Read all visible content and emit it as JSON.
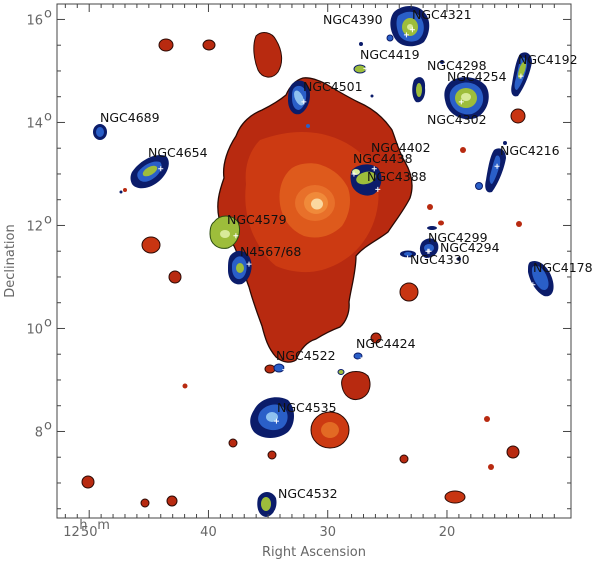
{
  "chart_data": {
    "type": "scatter",
    "xlabel": "Right Ascension",
    "ylabel": "Declination",
    "x_ticks": [
      {
        "ra": 50,
        "label": "50",
        "lead": "12",
        "h": "h",
        "m": "m"
      },
      {
        "ra": 40,
        "label": "40"
      },
      {
        "ra": 30,
        "label": "30"
      },
      {
        "ra": 20,
        "label": "20"
      }
    ],
    "y_ticks": [
      {
        "dec": 8,
        "label": "8",
        "deg": "o"
      },
      {
        "dec": 10,
        "label": "10",
        "deg": "o"
      },
      {
        "dec": 12,
        "label": "12",
        "deg": "o"
      },
      {
        "dec": 14,
        "label": "14",
        "deg": "o"
      },
      {
        "dec": 16,
        "label": "16",
        "deg": "o"
      }
    ],
    "xlim": [
      52.7,
      9.6
    ],
    "ylim": [
      6.32,
      16.3
    ],
    "grid": false,
    "colors": {
      "xray_outer": "#b82a10",
      "xray_mid": "#cc3a12",
      "xray_inner": "#de5a1c",
      "xray_core": "#f08a3a",
      "xray_peak": "#fbd8a0",
      "hi_outer": "#0b1c6a",
      "hi_mid": "#2a5fc8",
      "hi_inner": "#8fc1ef",
      "hi_green": "#9dbd3b",
      "hi_green_light": "#d8ea9a"
    },
    "galaxies": [
      {
        "name": "NGC4390",
        "ra": 23.4,
        "dec": 15.7,
        "cls": "hi"
      },
      {
        "name": "NGC4321",
        "ra": 22.9,
        "dec": 15.8,
        "cls": "hi"
      },
      {
        "name": "NGC4419",
        "ra": 26.8,
        "dec": 15.05,
        "cls": "hi"
      },
      {
        "name": "NGC4298",
        "ra": 21.5,
        "dec": 14.6,
        "cls": "hi"
      },
      {
        "name": "NGC4254",
        "ra": 18.8,
        "dec": 14.4,
        "cls": "hi"
      },
      {
        "name": "NGC4192",
        "ra": 13.8,
        "dec": 14.9,
        "cls": "hi"
      },
      {
        "name": "NGC4501",
        "ra": 32.0,
        "dec": 14.4,
        "cls": "hi"
      },
      {
        "name": "NGC4302",
        "ra": 21.5,
        "dec": 14.35,
        "cls": "hi"
      },
      {
        "name": "NGC4689",
        "ra": 47.8,
        "dec": 13.75,
        "cls": "hi"
      },
      {
        "name": "NGC4402",
        "ra": 26.1,
        "dec": 13.1,
        "cls": "hi"
      },
      {
        "name": "NGC4438",
        "ra": 27.8,
        "dec": 13.0,
        "cls": "hi"
      },
      {
        "name": "NGC4654",
        "ra": 44.0,
        "dec": 13.1,
        "cls": "hi"
      },
      {
        "name": "NGC4216",
        "ra": 15.8,
        "dec": 13.15,
        "cls": "hi"
      },
      {
        "name": "NGC4388",
        "ra": 25.8,
        "dec": 12.7,
        "cls": "hi"
      },
      {
        "name": "NGC4579",
        "ra": 37.7,
        "dec": 11.8,
        "cls": "hi"
      },
      {
        "name": "NGC4299",
        "ra": 21.6,
        "dec": 11.5,
        "cls": "hi"
      },
      {
        "name": "NGC4294",
        "ra": 21.5,
        "dec": 11.5,
        "cls": "hi"
      },
      {
        "name": "N4567/68",
        "ra": 36.6,
        "dec": 11.25,
        "cls": "hi"
      },
      {
        "name": "NGC4330",
        "ra": 23.3,
        "dec": 11.37,
        "cls": "hi"
      },
      {
        "name": "NGC4178",
        "ra": 12.8,
        "dec": 10.85,
        "cls": "hi"
      },
      {
        "name": "NGC4424",
        "ra": 27.2,
        "dec": 9.4,
        "cls": "hi"
      },
      {
        "name": "NGC4522",
        "ra": 33.6,
        "dec": 9.2,
        "cls": "hi"
      },
      {
        "name": "NGC4535",
        "ra": 34.3,
        "dec": 8.2,
        "cls": "hi"
      },
      {
        "name": "NGC4532",
        "ra": 34.3,
        "dec": 6.45,
        "cls": "hi"
      }
    ],
    "label_positions": {
      "NGC4390": [
        323,
        24
      ],
      "NGC4321": [
        412,
        19
      ],
      "NGC4419": [
        360,
        59
      ],
      "NGC4298": [
        427,
        70
      ],
      "NGC4254": [
        447,
        81
      ],
      "NGC4192": [
        518,
        64
      ],
      "NGC4501": [
        303,
        91
      ],
      "NGC4302": [
        427,
        124
      ],
      "NGC4689": [
        100,
        122
      ],
      "NGC4402": [
        371,
        152
      ],
      "NGC4438": [
        353,
        163
      ],
      "NGC4654": [
        148,
        157
      ],
      "NGC4216": [
        500,
        155
      ],
      "NGC4388": [
        367,
        181
      ],
      "NGC4579": [
        227,
        224
      ],
      "NGC4299": [
        428,
        242
      ],
      "NGC4294": [
        440,
        252
      ],
      "N4567/68": [
        240,
        256
      ],
      "NGC4330": [
        410,
        264
      ],
      "NGC4178": [
        533,
        272
      ],
      "NGC4424": [
        356,
        348
      ],
      "NGC4522": [
        276,
        360
      ],
      "NGC4535": [
        277,
        412
      ],
      "NGC4532": [
        278,
        498
      ]
    }
  }
}
